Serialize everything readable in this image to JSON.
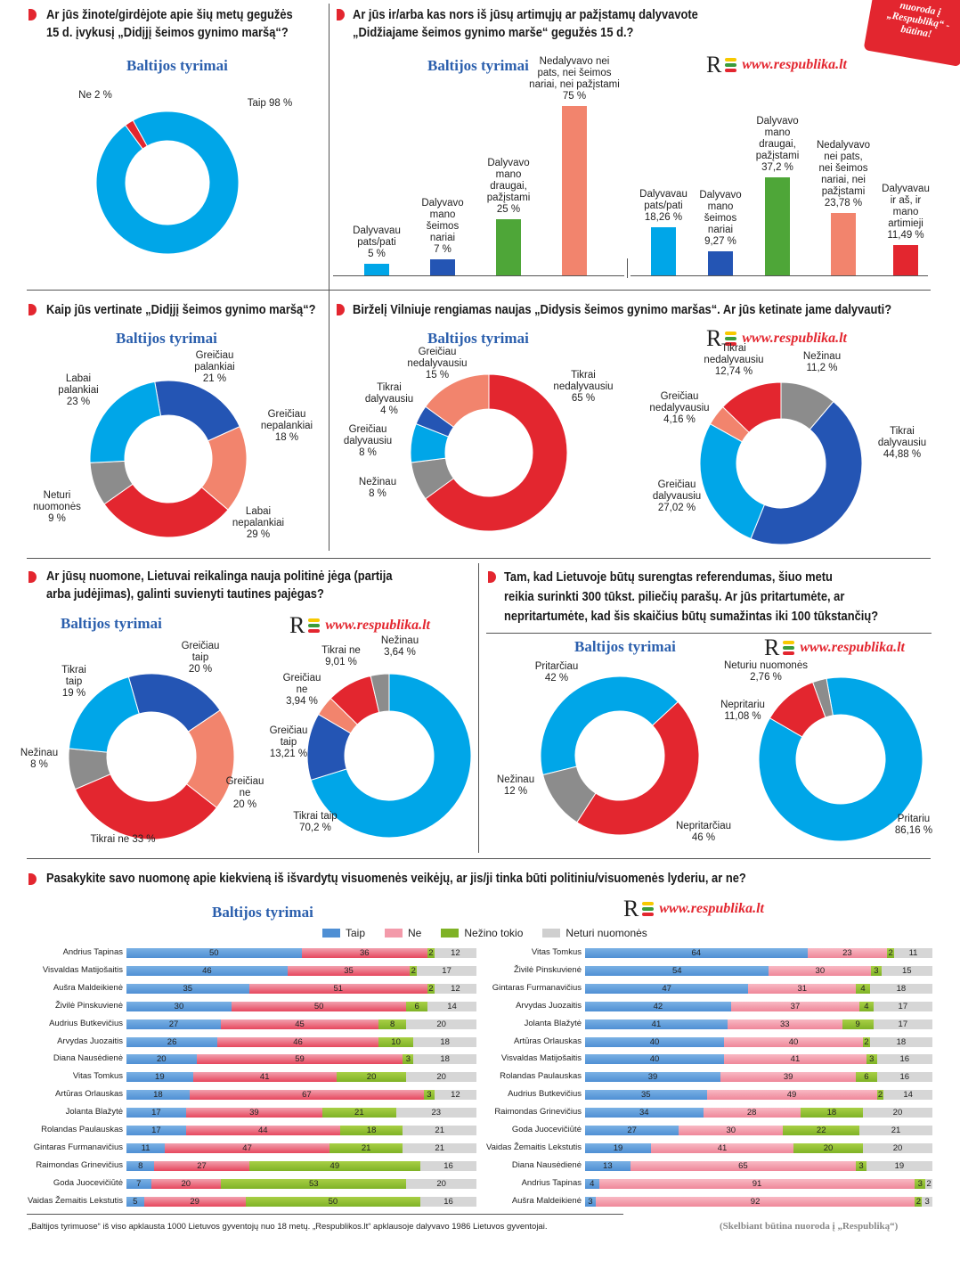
{
  "badge": {
    "text": [
      "nuoroda į",
      "„Respubliką“ -",
      "būtina!"
    ]
  },
  "sources": {
    "baltijos": "Baltijos tyrimai",
    "respublika": "www.respublika.lt",
    "logo": "R"
  },
  "questions": {
    "q1": [
      "Ar jūs žinote/girdėjote apie šių metų gegužės",
      "15 d. įvykusį „Didįjį šeimos gynimo maršą“?"
    ],
    "q2": [
      "Ar jūs ir/arba kas nors iš jūsų artimųjų ar pažįstamų dalyvavote",
      "„Didžiajame šeimos gynimo marše“ gegužės 15 d.?"
    ],
    "q3": [
      "Kaip jūs vertinate „Didįjį šeimos gynimo maršą“?"
    ],
    "q4": [
      "Birželį Vilniuje rengiamas naujas „Didysis šeimos gynimo maršas“. Ar jūs ketinate jame dalyvauti?"
    ],
    "q5": [
      "Ar jūsų nuomone, Lietuvai reikalinga nauja politinė jėga (partija",
      "arba judėjimas), galinti suvienyti tautines pajėgas?"
    ],
    "q6": [
      "Tam, kad Lietuvoje būtų surengtas referendumas, šiuo metu",
      "reikia surinkti 300 tūkst.  piliečių parašų. Ar jūs pritartumėte, ar",
      "nepritartumėte, kad šis skaičius būtų sumažintas iki 100 tūkstančių?"
    ],
    "q7": [
      "Pasakykite savo nuomonę apie kiekvieną iš išvardytų visuomenės veikėjų, ar jis/ji tinka būti politiniu/visuomenės lyderiu, ar ne?"
    ]
  },
  "chart_data": [
    {
      "id": "c1",
      "type": "pie",
      "source": "Baltijos tyrimai",
      "slices": [
        {
          "label": [
            "Taip 98 %"
          ],
          "value": 98,
          "color": "#00a6e8"
        },
        {
          "label": [
            "Ne 2 %"
          ],
          "value": 2,
          "color": "#e3262f"
        }
      ]
    },
    {
      "id": "c2",
      "type": "bar",
      "source": "Baltijos tyrimai",
      "categories": [
        [
          "Dalyvavau",
          "pats/pati",
          "5 %"
        ],
        [
          "Dalyvavo",
          "mano",
          "šeimos",
          "nariai",
          "7 %"
        ],
        [
          "Dalyvavo",
          "mano",
          "draugai,",
          "pažįstami",
          "25 %"
        ],
        [
          "Nedalyvavo nei",
          "pats, nei šeimos",
          "nariai, nei pažįstami",
          "75 %"
        ]
      ],
      "values": [
        5,
        7,
        25,
        75
      ],
      "colors": [
        "#00a6e8",
        "#2455b4",
        "#4ea638",
        "#f2846d"
      ],
      "ylim": [
        0,
        75
      ]
    },
    {
      "id": "c3",
      "type": "bar",
      "source": "www.respublika.lt",
      "categories": [
        [
          "Dalyvavau",
          "pats/pati",
          "18,26 %"
        ],
        [
          "Dalyvavo",
          "mano",
          "šeimos",
          "nariai",
          "9,27 %"
        ],
        [
          "Dalyvavo",
          "mano",
          "draugai,",
          "pažįstami",
          "37,2 %"
        ],
        [
          "Nedalyvavo",
          "nei pats,",
          "nei šeimos",
          "nariai, nei",
          "pažįstami",
          "23,78 %"
        ],
        [
          "Dalyvavau",
          "ir aš, ir",
          "mano",
          "artimieji",
          "11,49 %"
        ]
      ],
      "values": [
        18.26,
        9.27,
        37.2,
        23.78,
        11.49
      ],
      "colors": [
        "#00a6e8",
        "#2455b4",
        "#4ea638",
        "#f2846d",
        "#e3262f"
      ],
      "ylim": [
        0,
        37.2
      ]
    },
    {
      "id": "c4",
      "type": "pie",
      "source": "Baltijos tyrimai",
      "slices": [
        {
          "label": [
            "Greičiau",
            "palankiai",
            "21 %"
          ],
          "value": 21,
          "color": "#2455b4"
        },
        {
          "label": [
            "Greičiau",
            "nepalankiai",
            "18 %"
          ],
          "value": 18,
          "color": "#f2846d"
        },
        {
          "label": [
            "Labai",
            "nepalankiai",
            "29 %"
          ],
          "value": 29,
          "color": "#e3262f"
        },
        {
          "label": [
            "Neturi",
            "nuomonės",
            "9 %"
          ],
          "value": 9,
          "color": "#8c8c8c"
        },
        {
          "label": [
            "Labai",
            "palankiai",
            "23 %"
          ],
          "value": 23,
          "color": "#00a6e8"
        }
      ]
    },
    {
      "id": "c5",
      "type": "pie",
      "source": "Baltijos tyrimai",
      "slices": [
        {
          "label": [
            "Tikrai",
            "nedalyvausiu",
            "65 %"
          ],
          "value": 65,
          "color": "#e3262f"
        },
        {
          "label": [
            "Nežinau",
            "8 %"
          ],
          "value": 8,
          "color": "#8c8c8c"
        },
        {
          "label": [
            "Greičiau",
            "dalyvausiu",
            "8 %"
          ],
          "value": 8,
          "color": "#00a6e8"
        },
        {
          "label": [
            "Tikrai",
            "dalyvausiu",
            "4 %"
          ],
          "value": 4,
          "color": "#2455b4"
        },
        {
          "label": [
            "Greičiau",
            "nedalyvausiu",
            "15 %"
          ],
          "value": 15,
          "color": "#f2846d"
        }
      ]
    },
    {
      "id": "c6",
      "type": "pie",
      "source": "www.respublika.lt",
      "slices": [
        {
          "label": [
            "Nežinau",
            "11,2 %"
          ],
          "value": 11.2,
          "color": "#8c8c8c"
        },
        {
          "label": [
            "Tikrai",
            "dalyvausiu",
            "44,88 %"
          ],
          "value": 44.88,
          "color": "#2455b4"
        },
        {
          "label": [
            "Greičiau",
            "dalyvausiu",
            "27,02 %"
          ],
          "value": 27.02,
          "color": "#00a6e8"
        },
        {
          "label": [
            "Greičiau",
            "nedalyvausiu",
            "4,16 %"
          ],
          "value": 4.16,
          "color": "#f2846d"
        },
        {
          "label": [
            "Tikrai",
            "nedalyvausiu",
            "12,74 %"
          ],
          "value": 12.74,
          "color": "#e3262f"
        }
      ]
    },
    {
      "id": "c7",
      "type": "pie",
      "source": "Baltijos tyrimai",
      "slices": [
        {
          "label": [
            "Greičiau",
            "taip",
            "20 %"
          ],
          "value": 20,
          "color": "#2455b4"
        },
        {
          "label": [
            "Greičiau",
            "ne",
            "20 %"
          ],
          "value": 20,
          "color": "#f2846d"
        },
        {
          "label": [
            "Tikrai ne 33 %"
          ],
          "value": 33,
          "color": "#e3262f"
        },
        {
          "label": [
            "Nežinau",
            "8 %"
          ],
          "value": 8,
          "color": "#8c8c8c"
        },
        {
          "label": [
            "Tikrai",
            "taip",
            "19 %"
          ],
          "value": 19,
          "color": "#00a6e8"
        }
      ]
    },
    {
      "id": "c8",
      "type": "pie",
      "source": "www.respublika.lt",
      "slices": [
        {
          "label": [
            "Tikrai taip",
            "70,2 %"
          ],
          "value": 70.2,
          "color": "#00a6e8"
        },
        {
          "label": [
            "Greičiau",
            "taip",
            "13,21 %"
          ],
          "value": 13.21,
          "color": "#2455b4"
        },
        {
          "label": [
            "Greičiau",
            "ne",
            "3,94 %"
          ],
          "value": 3.94,
          "color": "#f2846d"
        },
        {
          "label": [
            "Tikrai ne",
            "9,01 %"
          ],
          "value": 9.01,
          "color": "#e3262f"
        },
        {
          "label": [
            "Nežinau",
            "3,64 %"
          ],
          "value": 3.64,
          "color": "#8c8c8c"
        }
      ]
    },
    {
      "id": "c9",
      "type": "pie",
      "source": "Baltijos tyrimai",
      "slices": [
        {
          "label": [
            "Pritarčiau",
            "42 %"
          ],
          "value": 42,
          "color": "#00a6e8"
        },
        {
          "label": [
            "Nepritarčiau",
            "46 %"
          ],
          "value": 46,
          "color": "#e3262f"
        },
        {
          "label": [
            "Nežinau",
            "12 %"
          ],
          "value": 12,
          "color": "#8c8c8c"
        }
      ]
    },
    {
      "id": "c10",
      "type": "pie",
      "source": "www.respublika.lt",
      "slices": [
        {
          "label": [
            "Pritariu",
            "86,16  %"
          ],
          "value": 86.16,
          "color": "#00a6e8"
        },
        {
          "label": [
            "Nepritariu",
            "11,08  %"
          ],
          "value": 11.08,
          "color": "#e3262f"
        },
        {
          "label": [
            "Neturiu nuomonės",
            "2,76  %"
          ],
          "value": 2.76,
          "color": "#8c8c8c"
        }
      ]
    },
    {
      "id": "c11",
      "type": "bar",
      "orientation": "horizontal",
      "stacked": true,
      "source": "Baltijos tyrimai",
      "series_names": [
        "Taip",
        "Ne",
        "Nežino tokio",
        "Neturi nuomonės"
      ],
      "rows": [
        {
          "name": "Andrius Tapinas",
          "values": [
            50,
            36,
            2,
            12
          ]
        },
        {
          "name": "Visvaldas Matijošaitis",
          "values": [
            46,
            35,
            2,
            17
          ]
        },
        {
          "name": "Aušra Maldeikienė",
          "values": [
            35,
            51,
            2,
            12
          ]
        },
        {
          "name": "Živilė Pinskuvienė",
          "values": [
            30,
            50,
            6,
            14
          ]
        },
        {
          "name": "Audrius Butkevičius",
          "values": [
            27,
            45,
            8,
            20
          ]
        },
        {
          "name": "Arvydas Juozaitis",
          "values": [
            26,
            46,
            10,
            18
          ]
        },
        {
          "name": "Diana Nausėdienė",
          "values": [
            20,
            59,
            3,
            18
          ]
        },
        {
          "name": "Vitas Tomkus",
          "values": [
            19,
            41,
            20,
            20
          ]
        },
        {
          "name": "Artūras Orlauskas",
          "values": [
            18,
            67,
            3,
            12
          ]
        },
        {
          "name": "Jolanta Blažytė",
          "values": [
            17,
            39,
            21,
            23
          ]
        },
        {
          "name": "Rolandas Paulauskas",
          "values": [
            17,
            44,
            18,
            21
          ]
        },
        {
          "name": "Gintaras Furmanavičius",
          "values": [
            11,
            47,
            21,
            21
          ]
        },
        {
          "name": "Raimondas Grinevičius",
          "values": [
            8,
            27,
            49,
            16
          ]
        },
        {
          "name": "Goda Juocevičiūtė",
          "values": [
            7,
            20,
            53,
            20
          ]
        },
        {
          "name": "Vaidas Žemaitis Lekstutis",
          "values": [
            5,
            29,
            50,
            16
          ]
        }
      ]
    },
    {
      "id": "c12",
      "type": "bar",
      "orientation": "horizontal",
      "stacked": true,
      "source": "www.respublika.lt",
      "series_names": [
        "Taip",
        "Ne",
        "Nežino tokio",
        "Neturi nuomonės"
      ],
      "rows": [
        {
          "name": "Vitas Tomkus",
          "values": [
            64,
            23,
            2,
            11
          ]
        },
        {
          "name": "Živilė Pinskuvienė",
          "values": [
            54,
            30,
            3,
            15
          ]
        },
        {
          "name": "Gintaras Furmanavičius",
          "values": [
            47,
            31,
            4,
            18
          ]
        },
        {
          "name": "Arvydas Juozaitis",
          "values": [
            42,
            37,
            4,
            17
          ]
        },
        {
          "name": "Jolanta Blažytė",
          "values": [
            41,
            33,
            9,
            17
          ]
        },
        {
          "name": "Artūras Orlauskas",
          "values": [
            40,
            40,
            2,
            18
          ]
        },
        {
          "name": "Visvaldas Matijošaitis",
          "values": [
            40,
            41,
            3,
            16
          ]
        },
        {
          "name": "Rolandas Paulauskas",
          "values": [
            39,
            39,
            6,
            16
          ]
        },
        {
          "name": "Audrius Butkevičius",
          "values": [
            35,
            49,
            2,
            14
          ]
        },
        {
          "name": "Raimondas Grinevičius",
          "values": [
            34,
            28,
            18,
            20
          ]
        },
        {
          "name": "Goda Juocevičiūtė",
          "values": [
            27,
            30,
            22,
            21
          ]
        },
        {
          "name": "Vaidas Žemaitis Lekstutis",
          "values": [
            19,
            41,
            20,
            20
          ]
        },
        {
          "name": "Diana Nausėdienė",
          "values": [
            13,
            65,
            3,
            19
          ]
        },
        {
          "name": "Andrius Tapinas",
          "values": [
            4,
            91,
            3,
            2
          ]
        },
        {
          "name": "Aušra Maldeikienė",
          "values": [
            3,
            92,
            2,
            3
          ]
        }
      ]
    }
  ],
  "legend": {
    "taip": "Taip",
    "ne": "Ne",
    "nezino": "Nežino tokio",
    "neturi": "Neturi nuomonės"
  },
  "footnote": "„Baltijos tyrimuose“ iš viso apklausta 1000 Lietuvos gyventojų nuo 18 metų. „Respublikos.lt“ apklausoje dalyvavo 1986 Lietuvos gyventojai.",
  "footnote_right": "(Skelbiant būtina nuoroda į „Respubliką“)"
}
